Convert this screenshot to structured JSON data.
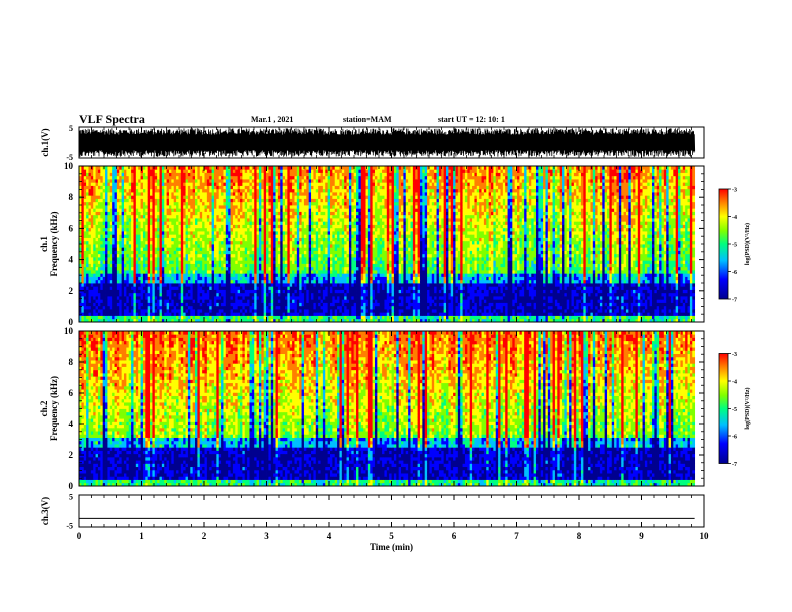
{
  "header": {
    "title": "VLF Spectra",
    "date": "Mar.1 , 2021",
    "station": "station=MAM",
    "start_ut": "start UT = 12: 10: 1"
  },
  "chart_data": [
    {
      "type": "line",
      "panel": "ch1-voltage",
      "ylabel": "ch.1(V)",
      "ylim": [
        -5,
        5
      ],
      "yticks": [
        "5",
        "-5"
      ],
      "description_series": "dense square-ish switching between -5 and 5",
      "series": [
        {
          "x": [
            0,
            9.85
          ],
          "y_range": [
            -5,
            5
          ]
        }
      ]
    },
    {
      "type": "heatmap",
      "panel": "ch1-spectrogram",
      "ylabel_top": "ch.1",
      "ylabel": "Frequency (kHz)",
      "ylim": [
        0,
        10
      ],
      "yticks": [
        "0",
        "2",
        "4",
        "6",
        "8",
        "10"
      ],
      "x_range": [
        0,
        9.85
      ],
      "colorbar": {
        "label": "log(PSD)(V²/Hz)",
        "range": [
          -7,
          -3
        ],
        "ticks": [
          "-3",
          "-4",
          "-5",
          "-6",
          "-7"
        ]
      }
    },
    {
      "type": "heatmap",
      "panel": "ch2-spectrogram",
      "ylabel_top": "ch.2",
      "ylabel": "Frequency (kHz)",
      "ylim": [
        0,
        10
      ],
      "yticks": [
        "0",
        "2",
        "4",
        "6",
        "8",
        "10"
      ],
      "x_range": [
        0,
        9.85
      ],
      "colorbar": {
        "label": "log(PSD)(V²/Hz)",
        "range": [
          -7,
          -3
        ],
        "ticks": [
          "-3",
          "-4",
          "-5",
          "-6",
          "-7"
        ]
      }
    },
    {
      "type": "line",
      "panel": "ch3-voltage",
      "ylabel": "ch.3(V)",
      "ylim": [
        -5,
        5
      ],
      "yticks": [
        "5",
        "-5"
      ],
      "series": [
        {
          "x": [
            0,
            9.85
          ],
          "y": [
            -2.5,
            -2.5
          ]
        }
      ]
    }
  ],
  "x_axis": {
    "label": "Time (min)",
    "ticks": [
      "0",
      "1",
      "2",
      "3",
      "4",
      "5",
      "6",
      "7",
      "8",
      "9",
      "10"
    ],
    "xlim": [
      0,
      10
    ]
  },
  "colors": {
    "line": "#000000",
    "colormap": [
      "#00008f",
      "#0000ff",
      "#00bfff",
      "#00ff7f",
      "#7fff00",
      "#ffff00",
      "#ff7f00",
      "#ff0000"
    ]
  }
}
